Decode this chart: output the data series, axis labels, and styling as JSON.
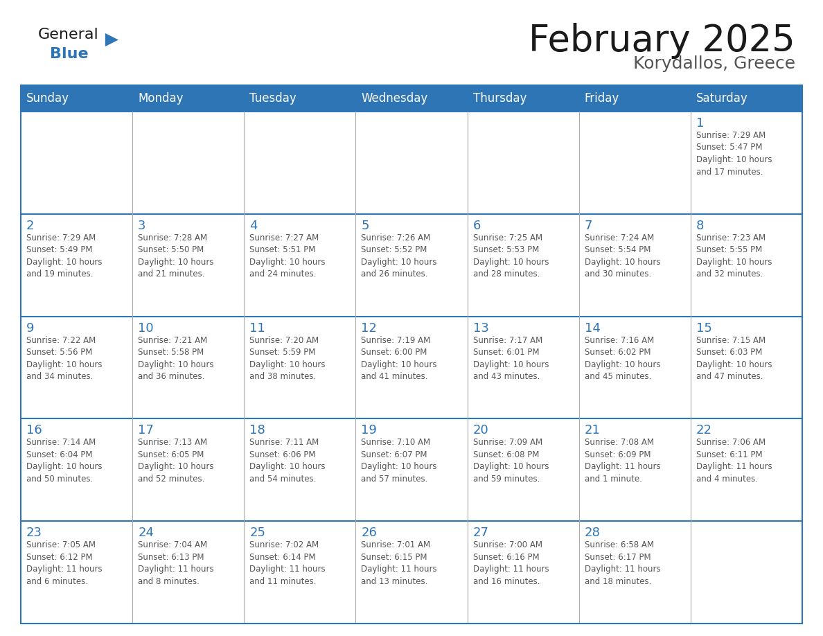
{
  "title": "February 2025",
  "subtitle": "Korydallos, Greece",
  "days_of_week": [
    "Sunday",
    "Monday",
    "Tuesday",
    "Wednesday",
    "Thursday",
    "Friday",
    "Saturday"
  ],
  "header_bg_color": "#2E75B6",
  "header_text_color": "#FFFFFF",
  "cell_bg_color": "#FFFFFF",
  "border_color": "#2E75B6",
  "day_number_color": "#2E75B6",
  "info_text_color": "#555555",
  "title_color": "#1a1a1a",
  "subtitle_color": "#555555",
  "logo_general_color": "#1a1a1a",
  "logo_blue_color": "#2E75B6",
  "weeks": [
    [
      {
        "day": null,
        "info": ""
      },
      {
        "day": null,
        "info": ""
      },
      {
        "day": null,
        "info": ""
      },
      {
        "day": null,
        "info": ""
      },
      {
        "day": null,
        "info": ""
      },
      {
        "day": null,
        "info": ""
      },
      {
        "day": 1,
        "info": "Sunrise: 7:29 AM\nSunset: 5:47 PM\nDaylight: 10 hours\nand 17 minutes."
      }
    ],
    [
      {
        "day": 2,
        "info": "Sunrise: 7:29 AM\nSunset: 5:49 PM\nDaylight: 10 hours\nand 19 minutes."
      },
      {
        "day": 3,
        "info": "Sunrise: 7:28 AM\nSunset: 5:50 PM\nDaylight: 10 hours\nand 21 minutes."
      },
      {
        "day": 4,
        "info": "Sunrise: 7:27 AM\nSunset: 5:51 PM\nDaylight: 10 hours\nand 24 minutes."
      },
      {
        "day": 5,
        "info": "Sunrise: 7:26 AM\nSunset: 5:52 PM\nDaylight: 10 hours\nand 26 minutes."
      },
      {
        "day": 6,
        "info": "Sunrise: 7:25 AM\nSunset: 5:53 PM\nDaylight: 10 hours\nand 28 minutes."
      },
      {
        "day": 7,
        "info": "Sunrise: 7:24 AM\nSunset: 5:54 PM\nDaylight: 10 hours\nand 30 minutes."
      },
      {
        "day": 8,
        "info": "Sunrise: 7:23 AM\nSunset: 5:55 PM\nDaylight: 10 hours\nand 32 minutes."
      }
    ],
    [
      {
        "day": 9,
        "info": "Sunrise: 7:22 AM\nSunset: 5:56 PM\nDaylight: 10 hours\nand 34 minutes."
      },
      {
        "day": 10,
        "info": "Sunrise: 7:21 AM\nSunset: 5:58 PM\nDaylight: 10 hours\nand 36 minutes."
      },
      {
        "day": 11,
        "info": "Sunrise: 7:20 AM\nSunset: 5:59 PM\nDaylight: 10 hours\nand 38 minutes."
      },
      {
        "day": 12,
        "info": "Sunrise: 7:19 AM\nSunset: 6:00 PM\nDaylight: 10 hours\nand 41 minutes."
      },
      {
        "day": 13,
        "info": "Sunrise: 7:17 AM\nSunset: 6:01 PM\nDaylight: 10 hours\nand 43 minutes."
      },
      {
        "day": 14,
        "info": "Sunrise: 7:16 AM\nSunset: 6:02 PM\nDaylight: 10 hours\nand 45 minutes."
      },
      {
        "day": 15,
        "info": "Sunrise: 7:15 AM\nSunset: 6:03 PM\nDaylight: 10 hours\nand 47 minutes."
      }
    ],
    [
      {
        "day": 16,
        "info": "Sunrise: 7:14 AM\nSunset: 6:04 PM\nDaylight: 10 hours\nand 50 minutes."
      },
      {
        "day": 17,
        "info": "Sunrise: 7:13 AM\nSunset: 6:05 PM\nDaylight: 10 hours\nand 52 minutes."
      },
      {
        "day": 18,
        "info": "Sunrise: 7:11 AM\nSunset: 6:06 PM\nDaylight: 10 hours\nand 54 minutes."
      },
      {
        "day": 19,
        "info": "Sunrise: 7:10 AM\nSunset: 6:07 PM\nDaylight: 10 hours\nand 57 minutes."
      },
      {
        "day": 20,
        "info": "Sunrise: 7:09 AM\nSunset: 6:08 PM\nDaylight: 10 hours\nand 59 minutes."
      },
      {
        "day": 21,
        "info": "Sunrise: 7:08 AM\nSunset: 6:09 PM\nDaylight: 11 hours\nand 1 minute."
      },
      {
        "day": 22,
        "info": "Sunrise: 7:06 AM\nSunset: 6:11 PM\nDaylight: 11 hours\nand 4 minutes."
      }
    ],
    [
      {
        "day": 23,
        "info": "Sunrise: 7:05 AM\nSunset: 6:12 PM\nDaylight: 11 hours\nand 6 minutes."
      },
      {
        "day": 24,
        "info": "Sunrise: 7:04 AM\nSunset: 6:13 PM\nDaylight: 11 hours\nand 8 minutes."
      },
      {
        "day": 25,
        "info": "Sunrise: 7:02 AM\nSunset: 6:14 PM\nDaylight: 11 hours\nand 11 minutes."
      },
      {
        "day": 26,
        "info": "Sunrise: 7:01 AM\nSunset: 6:15 PM\nDaylight: 11 hours\nand 13 minutes."
      },
      {
        "day": 27,
        "info": "Sunrise: 7:00 AM\nSunset: 6:16 PM\nDaylight: 11 hours\nand 16 minutes."
      },
      {
        "day": 28,
        "info": "Sunrise: 6:58 AM\nSunset: 6:17 PM\nDaylight: 11 hours\nand 18 minutes."
      },
      {
        "day": null,
        "info": ""
      }
    ]
  ]
}
